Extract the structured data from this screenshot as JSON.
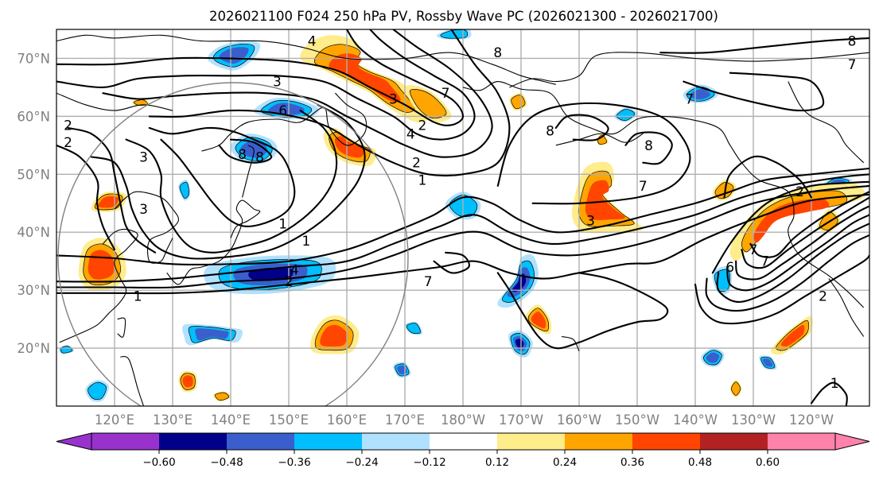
{
  "chart_data": {
    "type": "map-contour-filled",
    "title": "2026021100 F024 250 hPa PV, Rossby Wave PC (2026021300 - 2026021700)",
    "projection": "PlateCarree",
    "lon_range": [
      110,
      250
    ],
    "lat_range": [
      10,
      75
    ],
    "x_ticks": [
      "120°E",
      "130°E",
      "140°E",
      "150°E",
      "160°E",
      "170°E",
      "180°W",
      "170°W",
      "160°W",
      "150°W",
      "140°W",
      "130°W",
      "120°W"
    ],
    "x_tick_lons": [
      120,
      130,
      140,
      150,
      160,
      170,
      180,
      190,
      200,
      210,
      220,
      230,
      240
    ],
    "y_ticks": [
      "20°N",
      "30°N",
      "40°N",
      "50°N",
      "60°N",
      "70°N"
    ],
    "y_tick_lats": [
      20,
      30,
      40,
      50,
      60,
      70
    ],
    "grid": true,
    "filled_field": {
      "name": "Rossby Wave PC",
      "levels": [
        -0.6,
        -0.48,
        -0.36,
        -0.24,
        -0.12,
        0.12,
        0.24,
        0.36,
        0.48,
        0.6
      ],
      "colors": [
        "#9932cc",
        "#00008b",
        "#3a5fcd",
        "#00bfff",
        "#b0e2ff",
        "#ffffff",
        "#ffec8b",
        "#ffa500",
        "#ff4500",
        "#b22222",
        "#ff82ab"
      ],
      "extend": "both"
    },
    "contour_field": {
      "name": "250 hPa PV",
      "labels": [
        "1",
        "2",
        "3",
        "4",
        "6",
        "7",
        "8"
      ]
    },
    "contour_labels": [
      {
        "text": "1",
        "lon": 124,
        "lat": 29
      },
      {
        "text": "2",
        "lon": 112,
        "lat": 58.5
      },
      {
        "text": "2",
        "lon": 112,
        "lat": 55.5
      },
      {
        "text": "3",
        "lon": 125,
        "lat": 44
      },
      {
        "text": "3",
        "lon": 125,
        "lat": 53
      },
      {
        "text": "3",
        "lon": 148,
        "lat": 66
      },
      {
        "text": "3",
        "lon": 168,
        "lat": 63
      },
      {
        "text": "2",
        "lon": 150,
        "lat": 31.5
      },
      {
        "text": "4",
        "lon": 151,
        "lat": 33.5
      },
      {
        "text": "4",
        "lon": 154,
        "lat": 73
      },
      {
        "text": "6",
        "lon": 149,
        "lat": 61
      },
      {
        "text": "8",
        "lon": 142,
        "lat": 53.5
      },
      {
        "text": "8",
        "lon": 145,
        "lat": 53
      },
      {
        "text": "1",
        "lon": 149,
        "lat": 41.5
      },
      {
        "text": "1",
        "lon": 153,
        "lat": 38.5
      },
      {
        "text": "2",
        "lon": 172,
        "lat": 52
      },
      {
        "text": "1",
        "lon": 173,
        "lat": 49
      },
      {
        "text": "7",
        "lon": 174,
        "lat": 31.5
      },
      {
        "text": "2",
        "lon": 173,
        "lat": 58.5
      },
      {
        "text": "4",
        "lon": 171,
        "lat": 57
      },
      {
        "text": "7",
        "lon": 177,
        "lat": 64
      },
      {
        "text": "8",
        "lon": 186,
        "lat": 71
      },
      {
        "text": "8",
        "lon": 195,
        "lat": 57.5
      },
      {
        "text": "8",
        "lon": 212,
        "lat": 55
      },
      {
        "text": "7",
        "lon": 211,
        "lat": 48
      },
      {
        "text": "3",
        "lon": 202,
        "lat": 42
      },
      {
        "text": "7",
        "lon": 219,
        "lat": 63
      },
      {
        "text": "8",
        "lon": 247,
        "lat": 73
      },
      {
        "text": "7",
        "lon": 247,
        "lat": 69
      },
      {
        "text": "2",
        "lon": 238,
        "lat": 47
      },
      {
        "text": "6",
        "lon": 226,
        "lat": 34
      },
      {
        "text": "7",
        "lon": 230,
        "lat": 37
      },
      {
        "text": "7",
        "lon": 232,
        "lat": 35
      },
      {
        "text": "2",
        "lon": 242,
        "lat": 29
      },
      {
        "text": "1",
        "lon": 244,
        "lat": 14
      }
    ],
    "overlay": {
      "type": "circle",
      "description": "great-circle ring centered near 140°E, 40°N"
    }
  },
  "colorbar": {
    "tick_labels": [
      "−0.60",
      "−0.48",
      "−0.36",
      "−0.24",
      "−0.12",
      "0.12",
      "0.24",
      "0.36",
      "0.48",
      "0.60"
    ],
    "extend": "both"
  }
}
